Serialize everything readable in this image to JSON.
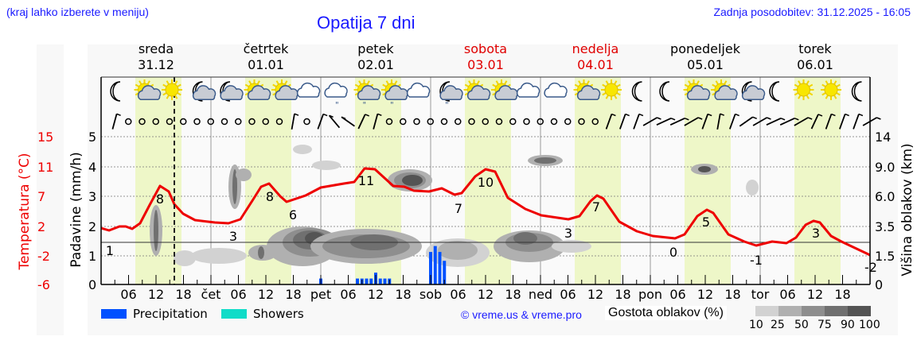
{
  "header": {
    "hint": "(kraj lahko izberete v meniju)",
    "title": "Opatija 7 dni",
    "updated": "Zadnja posodobitev: 31.12.2025 - 16:05"
  },
  "days": [
    {
      "name": "sreda",
      "date": "31.12",
      "weekend": false
    },
    {
      "name": "četrtek",
      "date": "01.01",
      "weekend": false
    },
    {
      "name": "petek",
      "date": "02.01",
      "weekend": false
    },
    {
      "name": "sobota",
      "date": "03.01",
      "weekend": true
    },
    {
      "name": "nedelja",
      "date": "04.01",
      "weekend": true
    },
    {
      "name": "ponedeljek",
      "date": "05.01",
      "weekend": false
    },
    {
      "name": "torek",
      "date": "06.01",
      "weekend": false
    }
  ],
  "axes": {
    "temp_label": "Temperatura (°C)",
    "temp_ticks": [
      "15",
      "11",
      "7",
      "2",
      "-2",
      "-6"
    ],
    "precip_label": "Padavine (mm/h)",
    "precip_ticks": [
      "5",
      "4",
      "3",
      "2",
      "1",
      "0"
    ],
    "cloud_label": "Višina oblakov (km)",
    "cloud_ticks": [
      "14",
      "9.0",
      "6.0",
      "3.5",
      "1.5",
      "0"
    ],
    "x_ticks": [
      "06",
      "12",
      "18",
      "čet",
      "06",
      "12",
      "18",
      "pet",
      "06",
      "12",
      "18",
      "sob",
      "06",
      "12",
      "18",
      "ned",
      "06",
      "12",
      "18",
      "pon",
      "06",
      "12",
      "18",
      "tor",
      "06",
      "12",
      "18"
    ]
  },
  "legend": {
    "precipitation": "Precipitation",
    "showers": "Showers",
    "precip_color": "#0050ff",
    "showers_color": "#10dcc8",
    "copyright": "© vreme.us & vreme.pro",
    "cloud_density_title": "Gostota oblakov (%)",
    "cloud_density_levels": [
      "10",
      "25",
      "50",
      "75",
      "90",
      "100"
    ],
    "cloud_density_colors": [
      "#d2d2d2",
      "#b0b0b0",
      "#8e8e8e",
      "#707070",
      "#545454"
    ]
  },
  "colors": {
    "temperature": "#ee0000",
    "daylight": "#eef7c8",
    "title_blue": "#1a1aff",
    "weekend_red": "#e00000"
  },
  "chart_data": {
    "type": "line",
    "title": "Opatija 7 dni",
    "xlabel": "",
    "ylabel": "Temperatura (°C) / Padavine (mm/h)",
    "y2label": "Višina oblakov (km)",
    "ylim_precip": [
      0,
      5
    ],
    "ylim_temp": [
      -6,
      15
    ],
    "grid": true,
    "current_time": "31.12 16:00",
    "temperature_labels": [
      {
        "time": "31.12 00:00",
        "value": 1
      },
      {
        "time": "31.12 13:00",
        "value": 8
      },
      {
        "time": "01.01 05:00",
        "value": 3
      },
      {
        "time": "01.01 12:00",
        "value": 8
      },
      {
        "time": "01.01 18:00",
        "value": 6
      },
      {
        "time": "02.01 11:00",
        "value": 11
      },
      {
        "time": "03.01 06:00",
        "value": 7
      },
      {
        "time": "03.01 13:00",
        "value": 10
      },
      {
        "time": "04.01 06:00",
        "value": 3
      },
      {
        "time": "04.01 12:00",
        "value": 7
      },
      {
        "time": "05.01 05:00",
        "value": 0
      },
      {
        "time": "05.01 12:00",
        "value": 5
      },
      {
        "time": "06.01 00:00",
        "value": -1
      },
      {
        "time": "06.01 12:00",
        "value": 3
      },
      {
        "time": "06.01 23:00",
        "value": -2
      }
    ],
    "precipitation_mm_h": [
      {
        "time": "02.01 00:00",
        "value": 0.2
      },
      {
        "time": "02.01 08:00",
        "value": 0.2
      },
      {
        "time": "02.01 09:00",
        "value": 0.2
      },
      {
        "time": "02.01 10:00",
        "value": 0.2
      },
      {
        "time": "02.01 11:00",
        "value": 0.2
      },
      {
        "time": "02.01 12:00",
        "value": 0.4
      },
      {
        "time": "02.01 13:00",
        "value": 0.2
      },
      {
        "time": "02.01 14:00",
        "value": 0.2
      },
      {
        "time": "02.01 15:00",
        "value": 0.2
      },
      {
        "time": "03.01 00:00",
        "value": 1.1
      },
      {
        "time": "03.01 01:00",
        "value": 1.3
      },
      {
        "time": "03.01 02:00",
        "value": 1.1
      },
      {
        "time": "03.01 03:00",
        "value": 0.8
      }
    ],
    "weather_icons": [
      "moon",
      "sun-cloud",
      "sun",
      "moon-cloud",
      "moon-cloud",
      "sun-cloud",
      "sun-cloud",
      "cloud",
      "cloud-rain",
      "sun-cloud-rain",
      "sun-cloud-rain",
      "cloud",
      "moon-cloud-rain",
      "sun-cloud",
      "sun-cloud",
      "cloud",
      "cloud",
      "sun-cloud",
      "sun",
      "moon",
      "moon",
      "sun-cloud",
      "sun-cloud",
      "moon-cloud",
      "moon",
      "sun",
      "sun",
      "moon"
    ]
  }
}
